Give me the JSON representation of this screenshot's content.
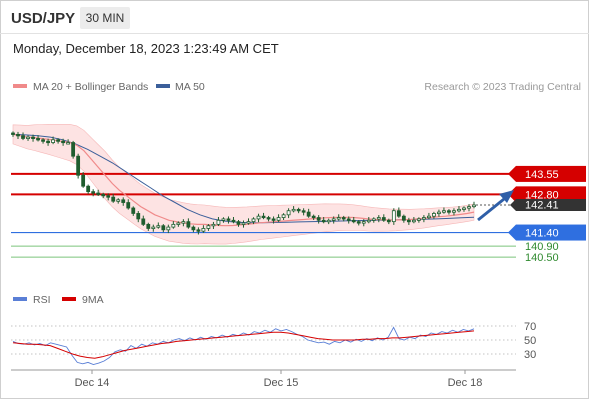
{
  "header": {
    "symbol": "USD/JPY",
    "timeframe": "30 MIN",
    "timestamp": "Monday, December 18, 2023 1:23:49 AM CET"
  },
  "colors": {
    "ma20": "#f08a8a",
    "bollinger_band": "#fde3e3",
    "ma50": "#3b5f9a",
    "candle": "#1f5d2e",
    "resistance": "#d50000",
    "support": "#2f6fe0",
    "target": "#7bc47b",
    "current_price_bg": "#333333",
    "rsi": "#5a7fd6",
    "rsi_ma": "#d50000",
    "arrow": "#2f5fa8"
  },
  "chart_data": [
    {
      "type": "line",
      "subtype": "candlestick-with-indicators",
      "legend": [
        {
          "name": "MA 20 + Bollinger Bands",
          "color": "#f08a8a"
        },
        {
          "name": "MA 50",
          "color": "#3b5f9a"
        }
      ],
      "source": "Research © 2023 Trading Central",
      "x_ticks": [
        "Dec 14",
        "Dec 15",
        "Dec 18"
      ],
      "ylim": [
        140.1,
        145.6
      ],
      "price_levels": [
        {
          "label": "143.55",
          "value": 143.55,
          "kind": "resistance"
        },
        {
          "label": "142.80",
          "value": 142.8,
          "kind": "resistance"
        },
        {
          "label": "142.41",
          "value": 142.41,
          "kind": "current"
        },
        {
          "label": "141.40",
          "value": 141.4,
          "kind": "support"
        },
        {
          "label": "140.90",
          "value": 140.9,
          "kind": "target"
        },
        {
          "label": "140.50",
          "value": 140.5,
          "kind": "target"
        }
      ],
      "close_series": [
        145.0,
        144.95,
        144.85,
        144.9,
        144.85,
        144.8,
        144.75,
        144.7,
        144.8,
        144.75,
        144.7,
        144.7,
        144.2,
        143.5,
        143.1,
        142.9,
        142.85,
        142.8,
        142.75,
        142.7,
        142.55,
        142.6,
        142.5,
        142.3,
        142.1,
        141.9,
        141.7,
        141.55,
        141.6,
        141.65,
        141.5,
        141.6,
        141.7,
        141.75,
        141.8,
        141.6,
        141.5,
        141.45,
        141.55,
        141.65,
        141.7,
        141.85,
        141.9,
        141.85,
        141.8,
        141.7,
        141.75,
        141.8,
        141.9,
        142.0,
        141.95,
        141.9,
        141.85,
        141.95,
        142.05,
        142.2,
        142.25,
        142.2,
        142.15,
        142.0,
        141.95,
        141.85,
        141.8,
        141.85,
        141.9,
        141.95,
        141.9,
        141.85,
        141.8,
        141.75,
        141.8,
        141.85,
        141.9,
        141.95,
        141.85,
        141.8,
        142.2,
        142.0,
        141.85,
        141.8,
        141.85,
        141.9,
        141.95,
        142.0,
        142.1,
        142.15,
        142.2,
        142.15,
        142.2,
        142.25,
        142.3,
        142.35,
        142.41
      ],
      "ma20_series": [
        145.0,
        144.95,
        144.9,
        144.88,
        144.85,
        144.82,
        144.78,
        144.74,
        144.7,
        144.6,
        144.4,
        144.1,
        143.8,
        143.5,
        143.2,
        142.95,
        142.75,
        142.55,
        142.35,
        142.2,
        142.05,
        141.95,
        141.85,
        141.8,
        141.75,
        141.72,
        141.7,
        141.7,
        141.68,
        141.66,
        141.65,
        141.66,
        141.68,
        141.7,
        141.73,
        141.76,
        141.78,
        141.8,
        141.82,
        141.84,
        141.86,
        141.88,
        141.9,
        141.92,
        141.94,
        141.95,
        141.96,
        141.96,
        141.95,
        141.93,
        141.9,
        141.88,
        141.87,
        141.86,
        141.86,
        141.87,
        141.88,
        141.9,
        141.92,
        141.95,
        141.98,
        142.0,
        142.03,
        142.06,
        142.1,
        142.15
      ],
      "ma50_series": [
        145.0,
        144.98,
        144.95,
        144.9,
        144.8,
        144.65,
        144.45,
        144.2,
        143.95,
        143.65,
        143.35,
        143.05,
        142.75,
        142.5,
        142.25,
        142.05,
        141.9,
        141.82,
        141.78,
        141.76,
        141.76,
        141.77,
        141.78,
        141.79,
        141.8,
        141.81,
        141.82,
        141.83,
        141.84,
        141.85,
        141.86,
        141.87,
        141.88,
        141.89,
        141.9,
        141.92,
        141.94,
        141.96
      ]
    },
    {
      "type": "line",
      "subtype": "oscillator",
      "legend": [
        {
          "name": "RSI",
          "color": "#5a7fd6"
        },
        {
          "name": "9MA",
          "color": "#d50000"
        }
      ],
      "y_ticks": [
        "70",
        "50",
        "30"
      ],
      "ylim": [
        10,
        90
      ],
      "rsi_series": [
        48,
        45,
        44,
        46,
        43,
        45,
        42,
        46,
        44,
        42,
        40,
        28,
        18,
        16,
        18,
        15,
        17,
        20,
        25,
        33,
        36,
        34,
        42,
        38,
        44,
        41,
        46,
        44,
        48,
        46,
        50,
        52,
        49,
        53,
        50,
        54,
        51,
        55,
        53,
        57,
        54,
        58,
        56,
        60,
        57,
        62,
        60,
        64,
        61,
        66,
        63,
        65,
        62,
        58,
        55,
        50,
        48,
        46,
        47,
        44,
        48,
        46,
        50,
        47,
        51,
        48,
        52,
        49,
        53,
        50,
        54,
        68,
        52,
        50,
        54,
        52,
        57,
        55,
        60,
        58,
        62,
        60,
        64,
        61,
        65,
        63,
        66
      ],
      "rsi_ma_series": [
        46,
        45,
        44,
        44,
        43,
        42,
        38,
        34,
        30,
        27,
        25,
        24,
        26,
        29,
        32,
        35,
        37,
        39,
        41,
        43,
        45,
        46,
        48,
        49,
        50,
        51,
        52,
        53,
        54,
        55,
        56,
        57,
        58,
        59,
        60,
        61,
        61,
        60,
        58,
        56,
        54,
        52,
        51,
        50,
        50,
        50,
        50,
        51,
        51,
        52,
        52,
        53,
        53,
        54,
        55,
        56,
        57,
        58,
        59,
        60,
        61,
        62,
        63
      ]
    }
  ]
}
